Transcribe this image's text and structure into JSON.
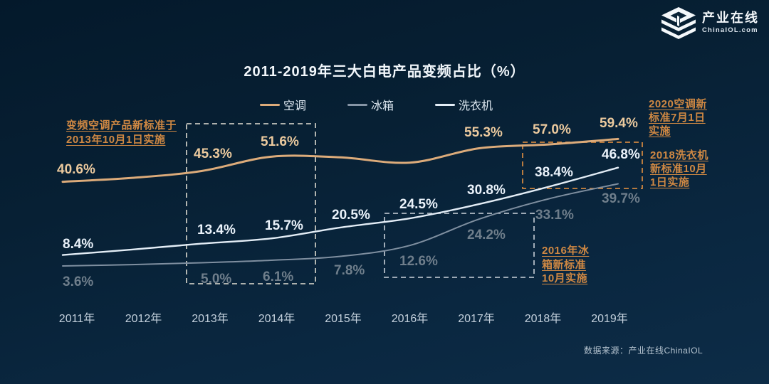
{
  "logo": {
    "name": "产业在线",
    "domain": "ChinaIOL.com"
  },
  "title": "2011-2019年三大白电产品变频占比（%）",
  "legend": [
    {
      "key": "air-conditioner",
      "label": "空调",
      "color": "#dcab7a"
    },
    {
      "key": "refrigerator",
      "label": "冰箱",
      "color": "#8695a6"
    },
    {
      "key": "washing-machine",
      "label": "洗衣机",
      "color": "#e3edf6"
    }
  ],
  "chart_data": {
    "type": "line",
    "title": "2011-2019年三大白电产品变频占比（%）",
    "categories": [
      "2011年",
      "2012年",
      "2013年",
      "2014年",
      "2015年",
      "2016年",
      "2017年",
      "2018年",
      "2019年"
    ],
    "x_years": [
      2011,
      2012,
      2013,
      2014,
      2015,
      2016,
      2017,
      2018,
      2019
    ],
    "series": [
      {
        "key": "air-conditioner",
        "name": "空调",
        "color": "#dcab7a",
        "label_color": "#ecca9e",
        "values": [
          40.6,
          42.3,
          45.3,
          51.6,
          51.3,
          49.0,
          55.3,
          57.0,
          59.4
        ],
        "labeled_points": [
          0,
          2,
          3,
          6,
          7,
          8
        ],
        "estimated_points": [
          1,
          4,
          5
        ]
      },
      {
        "key": "refrigerator",
        "name": "冰箱",
        "color": "#7f8fa0",
        "label_color": "#6f7e8b",
        "values": [
          3.6,
          4.2,
          5.0,
          6.1,
          7.8,
          12.6,
          24.2,
          33.1,
          39.7
        ],
        "labeled_points": [
          0,
          2,
          3,
          4,
          5,
          6,
          7,
          8
        ],
        "estimated_points": [
          1
        ]
      },
      {
        "key": "washing-machine",
        "name": "洗衣机",
        "color": "#e3edf6",
        "label_color": "#eaf2fa",
        "values": [
          8.4,
          10.8,
          13.4,
          15.7,
          20.5,
          24.5,
          30.8,
          38.4,
          46.8
        ],
        "labeled_points": [
          0,
          2,
          3,
          4,
          5,
          6,
          7,
          8
        ],
        "estimated_points": [
          1
        ]
      }
    ],
    "ylim": [
      0,
      65
    ],
    "grid": false,
    "legend_position": "top",
    "unit": "%"
  },
  "highlight_boxes": [
    {
      "range": "2013-2014",
      "color": "#c6c6bf"
    },
    {
      "range": "2016-2017",
      "color": "#b2bcc6"
    },
    {
      "range": "2018-2019",
      "color": "#cd8540"
    }
  ],
  "annotations": {
    "ac_2013": {
      "text": "变频空调产品新标准于\n2013年10月1日实施"
    },
    "ac_2020": {
      "text": "2020空调新\n标准7月1日\n实施"
    },
    "washer_2018": {
      "text": "2018洗衣机\n新标准10月\n1日实施"
    },
    "fridge_2016": {
      "text": "2016年冰\n箱新标准\n10月实施"
    }
  },
  "source": "数据来源：产业在线ChinaIOL",
  "colors": {
    "background_top": "#04192b",
    "background_bottom": "#0d2c47",
    "title": "#f2f7fb",
    "annotation_orange": "#cf8843",
    "axis_label": "#c4d1dd"
  }
}
